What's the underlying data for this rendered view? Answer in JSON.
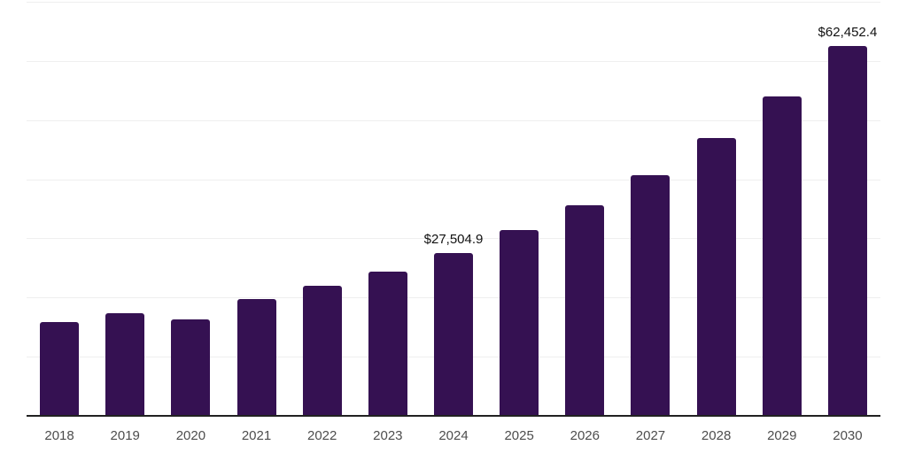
{
  "chart_data": {
    "type": "bar",
    "title": "",
    "xlabel": "",
    "ylabel": "",
    "categories": [
      "2018",
      "2019",
      "2020",
      "2021",
      "2022",
      "2023",
      "2024",
      "2025",
      "2026",
      "2027",
      "2028",
      "2029",
      "2030"
    ],
    "values": [
      15800,
      17300,
      16250,
      19700,
      22000,
      24450,
      27504.9,
      31350,
      35550,
      40750,
      46900,
      54050,
      62452.4
    ],
    "annotations": [
      {
        "index": 6,
        "text": "$27,504.9"
      },
      {
        "index": 12,
        "text": "$62,452.4"
      }
    ],
    "ylim": [
      0,
      70000
    ],
    "gridline_step": 10000,
    "grid": "horizontal",
    "legend": "none",
    "bar_color": "#351152",
    "gridline_color": "#efefef",
    "axis_line_color": "#212121",
    "tick_label_color": "#4d4d4d",
    "annotation_color": "#111111"
  }
}
